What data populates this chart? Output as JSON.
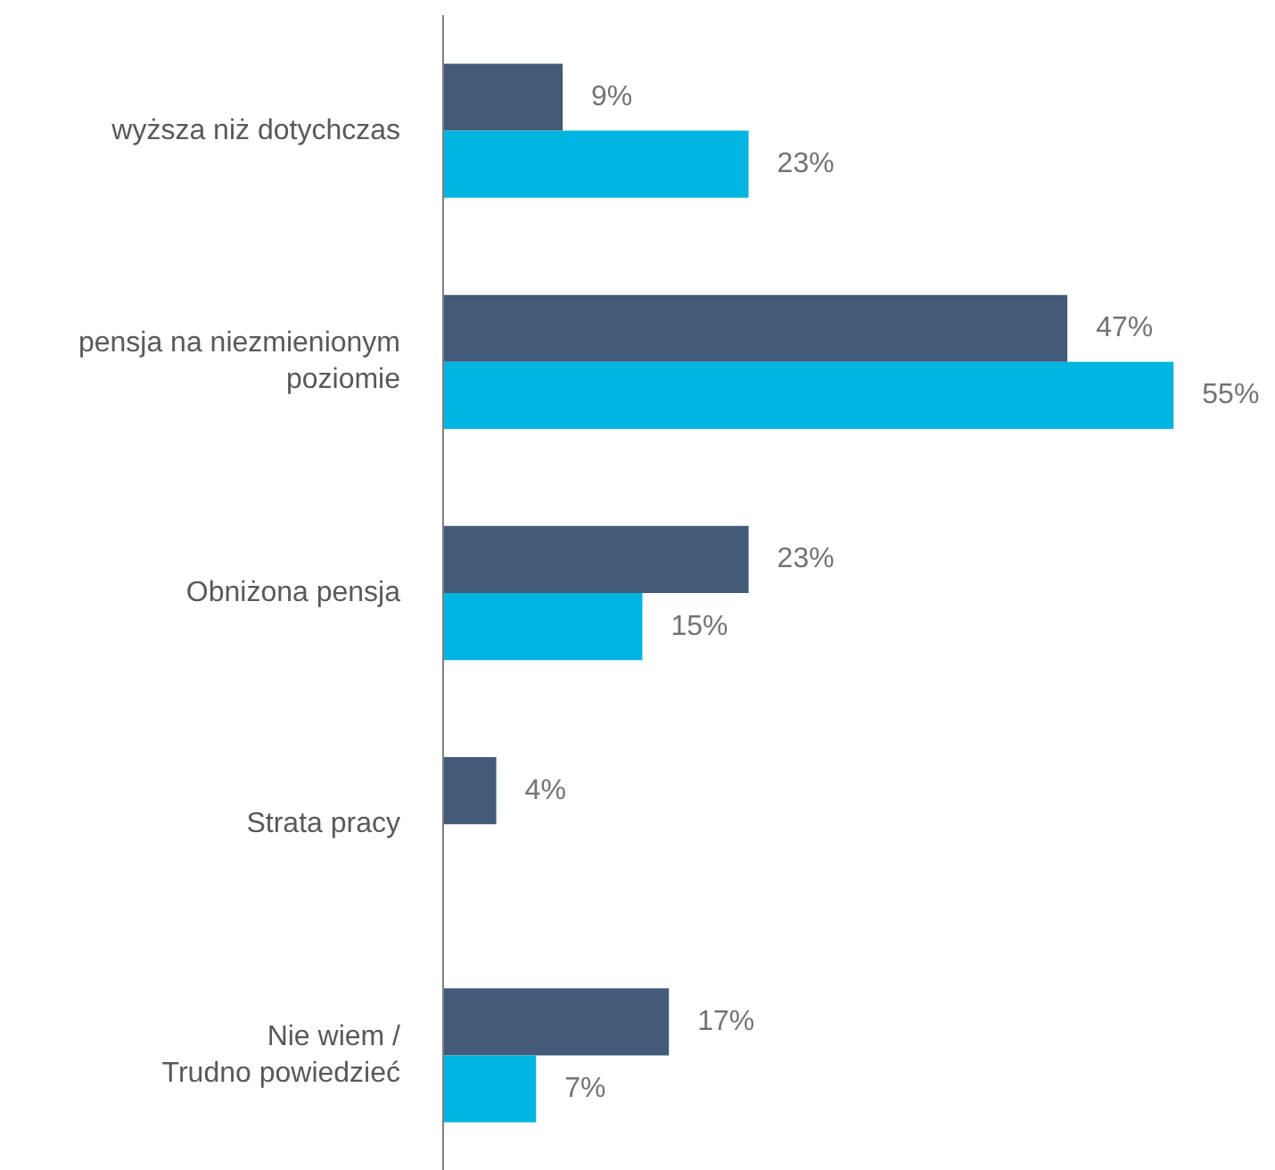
{
  "chart_data": {
    "type": "bar",
    "orientation": "horizontal",
    "categories": [
      "wyższa niż dotychczas",
      "pensja na niezmienionym poziomie",
      "Obniżona pensja",
      "Strata pracy",
      "Nie wiem / Trudno powiedzieć"
    ],
    "series": [
      {
        "color": "#435a78",
        "values": [
          9,
          47,
          23,
          4,
          17
        ],
        "value_labels": [
          "9%",
          "47%",
          "23%",
          "4%",
          "17%"
        ]
      },
      {
        "color": "#00b5e0",
        "values": [
          23,
          55,
          15,
          null,
          7
        ],
        "value_labels": [
          "23%",
          "55%",
          "15%",
          null,
          "7%"
        ]
      }
    ],
    "grid": false,
    "tick_labels": "y"
  }
}
